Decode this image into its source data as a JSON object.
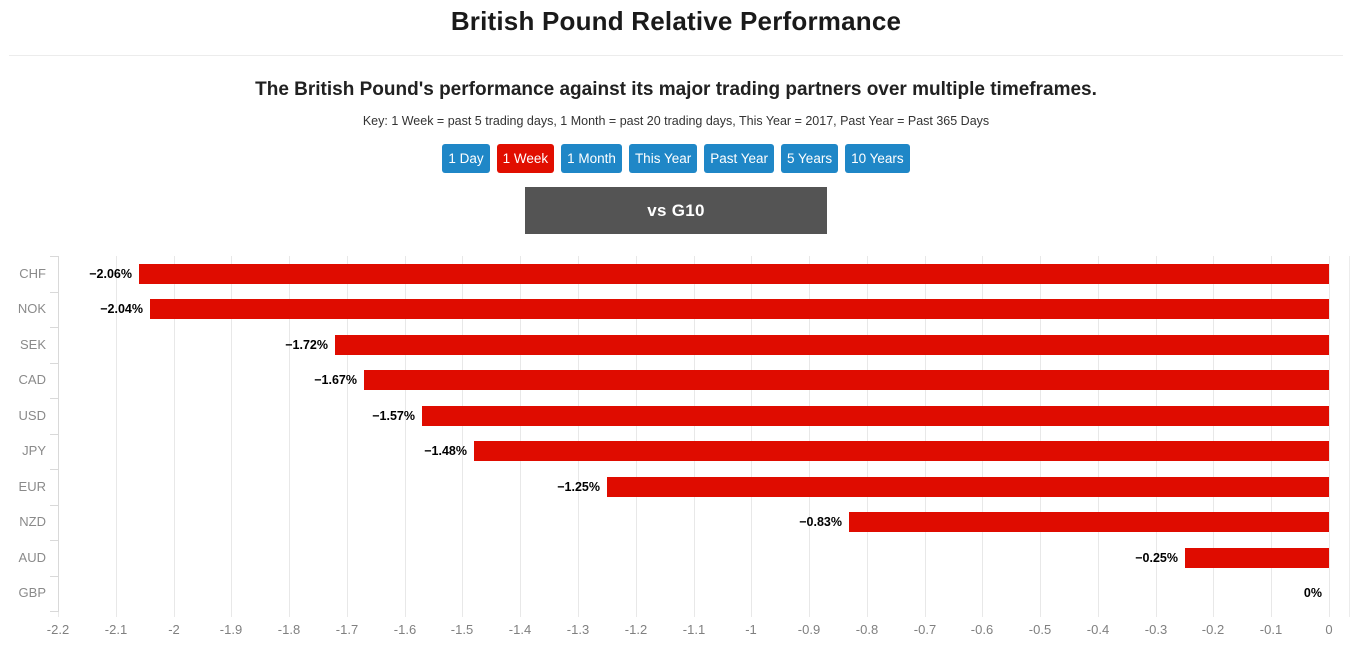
{
  "header": {
    "title": "British Pound Relative Performance",
    "subtitle": "The British Pound's performance against its major trading partners over multiple timeframes.",
    "key": "Key: 1 Week = past 5 trading days, 1 Month = past 20 trading days, This Year = 2017, Past Year = Past 365 Days"
  },
  "timeframe_buttons": [
    {
      "label": "1 Day",
      "active": false
    },
    {
      "label": "1 Week",
      "active": true
    },
    {
      "label": "1 Month",
      "active": false
    },
    {
      "label": "This Year",
      "active": false
    },
    {
      "label": "Past Year",
      "active": false
    },
    {
      "label": "5 Years",
      "active": false
    },
    {
      "label": "10 Years",
      "active": false
    }
  ],
  "panel": {
    "label": "vs G10"
  },
  "colors": {
    "bar_red": "#df0c00",
    "button_blue": "#1f87c7",
    "button_active_red": "#e10e00",
    "panel_gray": "#545454"
  },
  "chart_data": {
    "type": "bar",
    "orientation": "horizontal",
    "title": "vs G10",
    "categories": [
      "CHF",
      "NOK",
      "SEK",
      "CAD",
      "USD",
      "JPY",
      "EUR",
      "NZD",
      "AUD",
      "GBP"
    ],
    "values": [
      -2.06,
      -2.04,
      -1.72,
      -1.67,
      -1.57,
      -1.48,
      -1.25,
      -0.83,
      -0.25,
      0
    ],
    "value_labels": [
      "−2.06%",
      "−2.04%",
      "−1.72%",
      "−1.67%",
      "−1.57%",
      "−1.48%",
      "−1.25%",
      "−0.83%",
      "−0.25%",
      "0%"
    ],
    "xlim": [
      -2.2,
      0
    ],
    "x_tick_labels": [
      "-2.2",
      "-2.1",
      "-2",
      "-1.9",
      "-1.8",
      "-1.7",
      "-1.6",
      "-1.5",
      "-1.4",
      "-1.3",
      "-1.2",
      "-1.1",
      "-1",
      "-0.9",
      "-0.8",
      "-0.7",
      "-0.6",
      "-0.5",
      "-0.4",
      "-0.3",
      "-0.2",
      "-0.1",
      "0"
    ],
    "grid": true,
    "bar_color": "#df0c00",
    "legend": "none"
  }
}
